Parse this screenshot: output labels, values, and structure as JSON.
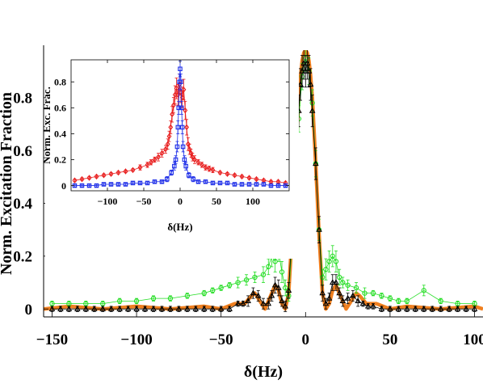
{
  "chart_data": [
    {
      "type": "scatter",
      "title": "",
      "xlabel": "δ(Hz)",
      "ylabel": "Norm. Excitation Fraction",
      "xlim": [
        -155,
        105
      ],
      "ylim": [
        -0.03,
        0.98
      ],
      "xticks": [
        -150,
        -100,
        -50,
        0,
        50,
        100
      ],
      "xtick_labels": [
        "−150",
        "−100",
        "−50",
        "0",
        "50",
        "100"
      ],
      "yticks": [
        0,
        0.2,
        0.4,
        0.6,
        0.8
      ],
      "ytick_labels": [
        "0",
        "0.2",
        "0.4",
        "0.6",
        "0.8"
      ],
      "grid": false,
      "legend": "none",
      "series": [
        {
          "color": "#f08020",
          "kind": "theory-line",
          "x": [
            -155,
            -140,
            -120,
            -100,
            -80,
            -60,
            -50,
            -42,
            -36,
            -32,
            -30,
            -28,
            -24,
            -20,
            -18,
            -16,
            -14,
            -12,
            -10,
            -8,
            -6,
            -4,
            -3,
            -2,
            -1,
            0,
            1,
            2,
            3,
            4,
            6,
            8,
            10,
            12,
            14,
            16,
            18,
            20,
            24,
            28,
            30,
            32,
            36,
            42,
            50,
            60,
            80,
            100,
            105
          ],
          "y": [
            0.0,
            0.01,
            0.0,
            0.01,
            0.0,
            0.01,
            0.0,
            0.02,
            0.02,
            0.05,
            0.06,
            0.04,
            0.0,
            0.06,
            0.09,
            0.07,
            0.02,
            0.0,
            0.06,
            0.28,
            0.55,
            0.8,
            0.88,
            0.94,
            0.97,
            0.98,
            0.97,
            0.94,
            0.88,
            0.8,
            0.55,
            0.28,
            0.06,
            0.0,
            0.02,
            0.07,
            0.09,
            0.06,
            0.0,
            0.04,
            0.06,
            0.05,
            0.02,
            0.02,
            0.0,
            0.01,
            0.0,
            0.01,
            0.0
          ]
        },
        {
          "color": "#22dd22",
          "marker": "circle",
          "x": [
            -150,
            -140,
            -130,
            -120,
            -110,
            -100,
            -90,
            -80,
            -70,
            -60,
            -55,
            -50,
            -45,
            -40,
            -35,
            -30,
            -25,
            -22,
            -20,
            -18,
            -16,
            -14,
            -12,
            -10,
            -8,
            -6,
            -4,
            -2,
            0,
            2,
            4,
            6,
            8,
            10,
            12,
            14,
            16,
            18,
            20,
            22,
            25,
            30,
            35,
            40,
            45,
            50,
            55,
            60,
            70,
            80,
            90,
            100
          ],
          "y": [
            0.02,
            0.02,
            0.02,
            0.02,
            0.03,
            0.03,
            0.04,
            0.04,
            0.05,
            0.06,
            0.07,
            0.08,
            0.09,
            0.1,
            0.11,
            0.12,
            0.13,
            0.16,
            0.2,
            0.18,
            0.22,
            0.14,
            0.08,
            0.05,
            0.25,
            0.5,
            0.72,
            0.88,
            0.95,
            0.9,
            0.78,
            0.55,
            0.3,
            0.12,
            0.15,
            0.18,
            0.2,
            0.18,
            0.12,
            0.1,
            0.09,
            0.08,
            0.06,
            0.06,
            0.05,
            0.04,
            0.03,
            0.03,
            0.07,
            0.03,
            0.02,
            0.02
          ],
          "errors": [
            0.01,
            0.01,
            0.01,
            0.01,
            0.01,
            0.01,
            0.01,
            0.01,
            0.01,
            0.01,
            0.01,
            0.01,
            0.01,
            0.02,
            0.02,
            0.02,
            0.03,
            0.03,
            0.04,
            0.04,
            0.04,
            0.04,
            0.03,
            0.02,
            0.04,
            0.05,
            0.05,
            0.05,
            0.05,
            0.05,
            0.05,
            0.05,
            0.04,
            0.03,
            0.04,
            0.04,
            0.04,
            0.04,
            0.03,
            0.02,
            0.02,
            0.02,
            0.02,
            0.01,
            0.01,
            0.01,
            0.01,
            0.01,
            0.02,
            0.01,
            0.01,
            0.01
          ]
        },
        {
          "color": "#000000",
          "marker": "triangle",
          "x": [
            -150,
            -145,
            -140,
            -135,
            -130,
            -125,
            -120,
            -115,
            -110,
            -105,
            -100,
            -95,
            -90,
            -85,
            -80,
            -75,
            -70,
            -65,
            -60,
            -55,
            -50,
            -45,
            -40,
            -37,
            -34,
            -31,
            -28,
            -25,
            -22,
            -20,
            -18,
            -16,
            -14,
            -12,
            -10,
            -8,
            -6,
            -4,
            -3,
            -2,
            -1,
            0,
            1,
            2,
            3,
            4,
            6,
            8,
            10,
            12,
            14,
            16,
            18,
            20,
            22,
            25,
            28,
            31,
            34,
            37,
            40,
            45,
            50,
            55,
            60,
            65,
            70,
            75,
            80,
            85,
            90,
            95,
            100
          ],
          "y": [
            0.0,
            0.0,
            0.0,
            0.0,
            0.0,
            0.0,
            0.0,
            0.0,
            0.0,
            0.0,
            0.0,
            0.0,
            0.0,
            0.0,
            0.0,
            0.0,
            0.0,
            0.0,
            0.0,
            0.0,
            0.0,
            0.0,
            0.02,
            0.02,
            0.03,
            0.06,
            0.05,
            0.02,
            0.02,
            0.05,
            0.09,
            0.08,
            0.03,
            0.01,
            0.07,
            0.3,
            0.55,
            0.75,
            0.85,
            0.9,
            0.93,
            0.9,
            0.93,
            0.9,
            0.85,
            0.75,
            0.55,
            0.3,
            0.06,
            0.02,
            0.04,
            0.1,
            0.1,
            0.06,
            0.03,
            0.04,
            0.05,
            0.03,
            0.02,
            0.01,
            0.01,
            0.0,
            0.0,
            0.0,
            0.0,
            0.0,
            0.0,
            0.0,
            0.0,
            0.0,
            0.0,
            0.0,
            0.0
          ],
          "errors": [
            0.01,
            0.01,
            0.01,
            0.01,
            0.01,
            0.01,
            0.01,
            0.01,
            0.01,
            0.01,
            0.01,
            0.01,
            0.01,
            0.01,
            0.01,
            0.01,
            0.01,
            0.01,
            0.01,
            0.01,
            0.01,
            0.01,
            0.01,
            0.01,
            0.02,
            0.02,
            0.02,
            0.02,
            0.02,
            0.02,
            0.03,
            0.03,
            0.02,
            0.02,
            0.03,
            0.05,
            0.06,
            0.06,
            0.06,
            0.06,
            0.06,
            0.06,
            0.06,
            0.06,
            0.06,
            0.06,
            0.06,
            0.05,
            0.03,
            0.02,
            0.02,
            0.03,
            0.03,
            0.02,
            0.02,
            0.02,
            0.02,
            0.02,
            0.01,
            0.01,
            0.01,
            0.01,
            0.01,
            0.01,
            0.01,
            0.01,
            0.01,
            0.01,
            0.01,
            0.01,
            0.01,
            0.01,
            0.01
          ]
        }
      ]
    },
    {
      "type": "scatter",
      "title": "",
      "xlabel": "δ(Hz)",
      "ylabel": "Norm. Exc. Frac.",
      "xlim": [
        -150,
        150
      ],
      "ylim": [
        -0.04,
        0.97
      ],
      "xticks": [
        -100,
        -50,
        0,
        50,
        100
      ],
      "xtick_labels": [
        "−100",
        "−50",
        "0",
        "50",
        "100"
      ],
      "yticks": [
        0,
        0.2,
        0.4,
        0.6,
        0.8
      ],
      "ytick_labels": [
        "0",
        "0.2",
        "0.4",
        "0.6",
        "0.8"
      ],
      "grid": false,
      "legend": "none",
      "series": [
        {
          "color": "#e81c1c",
          "marker": "diamond",
          "x": [
            -145,
            -135,
            -125,
            -115,
            -105,
            -95,
            -85,
            -75,
            -65,
            -55,
            -45,
            -40,
            -35,
            -30,
            -25,
            -20,
            -17,
            -15,
            -13,
            -11,
            -9,
            -7,
            -5,
            -3,
            -1,
            1,
            3,
            5,
            7,
            9,
            11,
            13,
            15,
            17,
            20,
            25,
            30,
            35,
            40,
            45,
            55,
            65,
            75,
            85,
            95,
            105,
            115,
            125,
            135,
            145
          ],
          "y": [
            0.04,
            0.05,
            0.06,
            0.07,
            0.08,
            0.09,
            0.1,
            0.11,
            0.12,
            0.14,
            0.16,
            0.18,
            0.2,
            0.22,
            0.25,
            0.28,
            0.32,
            0.38,
            0.45,
            0.55,
            0.62,
            0.7,
            0.75,
            0.7,
            0.78,
            0.72,
            0.68,
            0.74,
            0.58,
            0.45,
            0.32,
            0.28,
            0.25,
            0.22,
            0.2,
            0.18,
            0.16,
            0.14,
            0.13,
            0.12,
            0.1,
            0.09,
            0.08,
            0.07,
            0.06,
            0.05,
            0.04,
            0.03,
            0.03,
            0.02
          ],
          "errors": [
            0.01,
            0.01,
            0.01,
            0.01,
            0.01,
            0.01,
            0.01,
            0.01,
            0.01,
            0.02,
            0.02,
            0.02,
            0.02,
            0.03,
            0.03,
            0.03,
            0.04,
            0.04,
            0.05,
            0.06,
            0.06,
            0.07,
            0.08,
            0.08,
            0.08,
            0.08,
            0.08,
            0.08,
            0.07,
            0.06,
            0.05,
            0.04,
            0.03,
            0.03,
            0.03,
            0.02,
            0.02,
            0.02,
            0.02,
            0.02,
            0.01,
            0.01,
            0.01,
            0.01,
            0.01,
            0.01,
            0.01,
            0.01,
            0.01,
            0.01
          ]
        },
        {
          "color": "#1c2ce8",
          "marker": "square",
          "x": [
            -145,
            -135,
            -125,
            -115,
            -105,
            -95,
            -85,
            -75,
            -65,
            -55,
            -45,
            -35,
            -25,
            -18,
            -12,
            -8,
            -6,
            -4,
            -3,
            -2,
            -1,
            0,
            1,
            2,
            3,
            4,
            6,
            8,
            12,
            18,
            25,
            35,
            45,
            55,
            65,
            75,
            85,
            95,
            105,
            115,
            125,
            135,
            145
          ],
          "y": [
            0.0,
            0.0,
            0.0,
            0.0,
            0.01,
            0.01,
            0.01,
            0.01,
            0.02,
            0.02,
            0.02,
            0.03,
            0.03,
            0.05,
            0.1,
            0.15,
            0.2,
            0.3,
            0.45,
            0.6,
            0.8,
            0.9,
            0.8,
            0.6,
            0.45,
            0.3,
            0.2,
            0.15,
            0.08,
            0.05,
            0.03,
            0.03,
            0.02,
            0.02,
            0.02,
            0.01,
            0.01,
            0.01,
            0.01,
            0.01,
            0.0,
            0.0,
            0.0
          ],
          "errors": [
            0.01,
            0.01,
            0.01,
            0.01,
            0.01,
            0.01,
            0.01,
            0.01,
            0.01,
            0.01,
            0.01,
            0.01,
            0.01,
            0.02,
            0.02,
            0.03,
            0.03,
            0.04,
            0.05,
            0.05,
            0.06,
            0.06,
            0.06,
            0.05,
            0.05,
            0.04,
            0.03,
            0.03,
            0.02,
            0.02,
            0.01,
            0.01,
            0.01,
            0.01,
            0.01,
            0.01,
            0.01,
            0.01,
            0.01,
            0.01,
            0.01,
            0.01,
            0.01
          ]
        }
      ]
    }
  ]
}
